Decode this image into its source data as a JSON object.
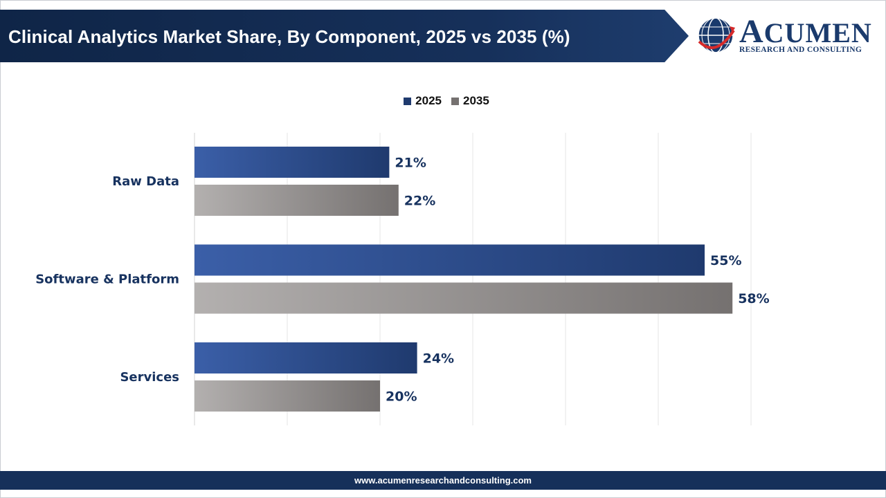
{
  "header": {
    "title": "Clinical Analytics Market Share, By Component, 2025 vs 2035 (%)"
  },
  "logo": {
    "word_first": "A",
    "word_rest": "CUMEN",
    "subtitle": "RESEARCH AND CONSULTING"
  },
  "footer": {
    "url": "www.acumenresearchandconsulting.com"
  },
  "colors": {
    "series_2025": "#1f3a6e",
    "series_2025_light": "#3b5fa8",
    "series_2035": "#757170",
    "series_2035_light": "#b3b0af",
    "label": "#17325f",
    "grid": "#e4e4e4"
  },
  "chart_data": {
    "type": "bar",
    "orientation": "horizontal",
    "categories": [
      "Raw Data",
      "Software & Platform",
      "Services"
    ],
    "series": [
      {
        "name": "2025",
        "values": [
          21,
          55,
          24
        ]
      },
      {
        "name": "2035",
        "values": [
          22,
          58,
          20
        ]
      }
    ],
    "value_suffix": "%",
    "xlim": [
      0,
      60
    ],
    "grid": true,
    "legend_position": "top-center"
  }
}
